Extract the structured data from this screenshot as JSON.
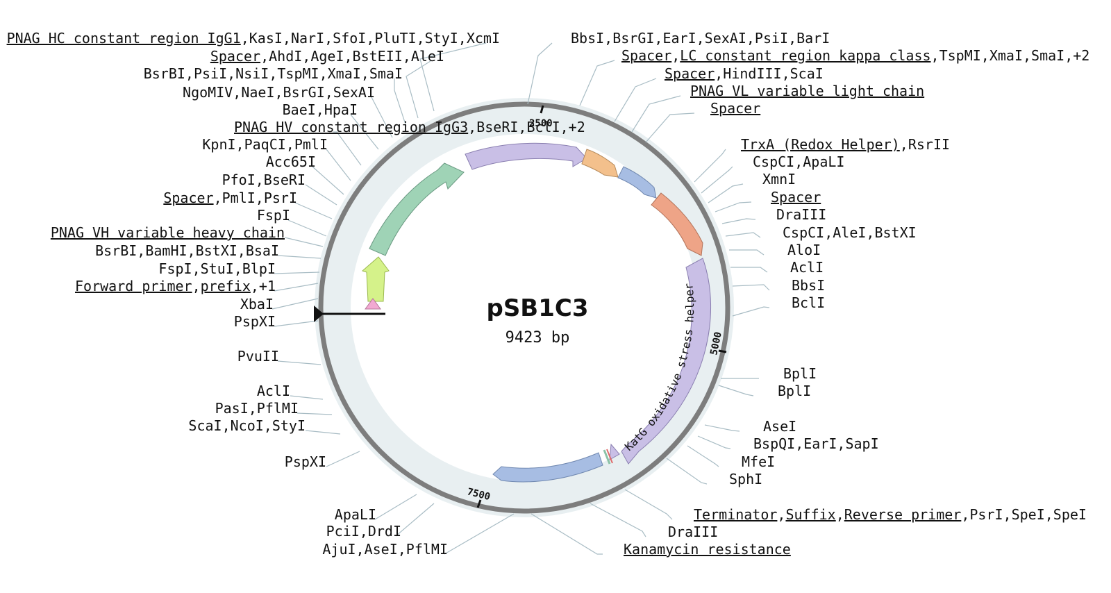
{
  "plasmid": {
    "name": "pSB1C3",
    "length_label": "9423 bp"
  },
  "ticks": [
    "2500",
    "5000",
    "7500"
  ],
  "feature_label": "KatG oxidative stress helper",
  "labels_left": [
    {
      "parts": [
        {
          "t": "PNAG HC constant region IgG1",
          "u": true
        },
        {
          "t": ",KasI,NarI,SfoI,PluTI,StyI,XcmI",
          "u": false
        }
      ]
    },
    {
      "parts": [
        {
          "t": "Spacer",
          "u": true
        },
        {
          "t": ",AhdI,AgeI,BstEII,AleI",
          "u": false
        }
      ]
    },
    {
      "parts": [
        {
          "t": "BsrBI,PsiI,NsiI,TspMI,XmaI,SmaI",
          "u": false
        }
      ]
    },
    {
      "parts": [
        {
          "t": "NgoMIV,NaeI,BsrGI,SexAI",
          "u": false
        }
      ]
    },
    {
      "parts": [
        {
          "t": "BaeI,HpaI",
          "u": false
        }
      ]
    },
    {
      "parts": [
        {
          "t": "PNAG HV constant region IgG3",
          "u": true
        },
        {
          "t": ",BseRI,BclI,+2",
          "u": false
        }
      ]
    },
    {
      "parts": [
        {
          "t": "KpnI,PaqCI,PmlI",
          "u": false
        }
      ]
    },
    {
      "parts": [
        {
          "t": "Acc65I",
          "u": false
        }
      ]
    },
    {
      "parts": [
        {
          "t": "PfoI,BseRI",
          "u": false
        }
      ]
    },
    {
      "parts": [
        {
          "t": "Spacer",
          "u": true
        },
        {
          "t": ",PmlI,PsrI",
          "u": false
        }
      ]
    },
    {
      "parts": [
        {
          "t": "FspI",
          "u": false
        }
      ]
    },
    {
      "parts": [
        {
          "t": "PNAG VH variable heavy chain",
          "u": true
        }
      ]
    },
    {
      "parts": [
        {
          "t": "BsrBI,BamHI,BstXI,BsaI",
          "u": false
        }
      ]
    },
    {
      "parts": [
        {
          "t": "FspI,StuI,BlpI",
          "u": false
        }
      ]
    },
    {
      "parts": [
        {
          "t": "Forward primer",
          "u": true
        },
        {
          "t": ",",
          "u": false
        },
        {
          "t": "prefix",
          "u": true
        },
        {
          "t": ",+1",
          "u": false
        }
      ]
    },
    {
      "parts": [
        {
          "t": "XbaI",
          "u": false
        }
      ]
    },
    {
      "parts": [
        {
          "t": "PspXI",
          "u": false
        }
      ]
    },
    {
      "parts": [
        {
          "t": "PvuII",
          "u": false
        }
      ]
    },
    {
      "parts": [
        {
          "t": "AclI",
          "u": false
        }
      ]
    },
    {
      "parts": [
        {
          "t": "PasI,PflMI",
          "u": false
        }
      ]
    },
    {
      "parts": [
        {
          "t": "ScaI,NcoI,StyI",
          "u": false
        }
      ]
    },
    {
      "parts": [
        {
          "t": "PspXI",
          "u": false
        }
      ]
    },
    {
      "parts": [
        {
          "t": "ApaLI",
          "u": false
        }
      ]
    },
    {
      "parts": [
        {
          "t": "PciI,DrdI",
          "u": false
        }
      ]
    },
    {
      "parts": [
        {
          "t": "AjuI,AseI,PflMI",
          "u": false
        }
      ]
    }
  ],
  "labels_right": [
    {
      "parts": [
        {
          "t": "BbsI,BsrGI,EarI,SexAI,PsiI,BarI",
          "u": false
        }
      ]
    },
    {
      "parts": [
        {
          "t": "Spacer",
          "u": true
        },
        {
          "t": ",",
          "u": false
        },
        {
          "t": "LC constant region kappa class",
          "u": true
        },
        {
          "t": ",TspMI,XmaI,SmaI,+2",
          "u": false
        }
      ]
    },
    {
      "parts": [
        {
          "t": "Spacer",
          "u": true
        },
        {
          "t": ",HindIII,ScaI",
          "u": false
        }
      ]
    },
    {
      "parts": [
        {
          "t": "PNAG VL variable light chain",
          "u": true
        }
      ]
    },
    {
      "parts": [
        {
          "t": "Spacer",
          "u": true
        }
      ]
    },
    {
      "parts": [
        {
          "t": "TrxA (Redox Helper)",
          "u": true
        },
        {
          "t": ",RsrII",
          "u": false
        }
      ]
    },
    {
      "parts": [
        {
          "t": "CspCI,ApaLI",
          "u": false
        }
      ]
    },
    {
      "parts": [
        {
          "t": "XmnI",
          "u": false
        }
      ]
    },
    {
      "parts": [
        {
          "t": "Spacer",
          "u": true
        }
      ]
    },
    {
      "parts": [
        {
          "t": "DraIII",
          "u": false
        }
      ]
    },
    {
      "parts": [
        {
          "t": "CspCI,AleI,BstXI",
          "u": false
        }
      ]
    },
    {
      "parts": [
        {
          "t": "AloI",
          "u": false
        }
      ]
    },
    {
      "parts": [
        {
          "t": "AclI",
          "u": false
        }
      ]
    },
    {
      "parts": [
        {
          "t": "BbsI",
          "u": false
        }
      ]
    },
    {
      "parts": [
        {
          "t": "BclI",
          "u": false
        }
      ]
    },
    {
      "parts": [
        {
          "t": "BplI",
          "u": false
        }
      ]
    },
    {
      "parts": [
        {
          "t": "BplI",
          "u": false
        }
      ]
    },
    {
      "parts": [
        {
          "t": "AseI",
          "u": false
        }
      ]
    },
    {
      "parts": [
        {
          "t": "BspQI,EarI,SapI",
          "u": false
        }
      ]
    },
    {
      "parts": [
        {
          "t": "MfeI",
          "u": false
        }
      ]
    },
    {
      "parts": [
        {
          "t": "SphI",
          "u": false
        }
      ]
    },
    {
      "parts": [
        {
          "t": "Terminator",
          "u": true
        },
        {
          "t": ",",
          "u": false
        },
        {
          "t": "Suffix",
          "u": true
        },
        {
          "t": ",",
          "u": false
        },
        {
          "t": "Reverse primer",
          "u": true
        },
        {
          "t": ",PsrI,SpeI,SpeI",
          "u": false
        }
      ]
    },
    {
      "parts": [
        {
          "t": "DraIII",
          "u": false
        }
      ]
    },
    {
      "parts": [
        {
          "t": "Kanamycin resistance",
          "u": true
        }
      ]
    }
  ],
  "colors": {
    "backbone": "#7d7d7d",
    "band": "#e8eff1",
    "leader": "#a8bcc4",
    "feature_green": "#9fd3b6",
    "feature_purple": "#c9bfe6",
    "feature_orange": "#f3c08c",
    "feature_blue": "#a7bde3",
    "feature_salmon": "#eea487",
    "feature_lime": "#d5f28a",
    "feature_pink": "#f2a9d2",
    "feature_katg": "#c9bfe6",
    "feature_kan": "#a7bde3"
  }
}
